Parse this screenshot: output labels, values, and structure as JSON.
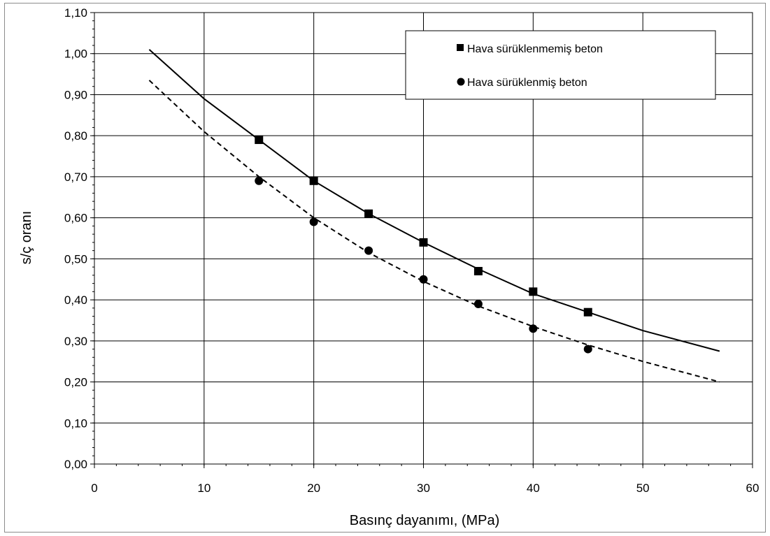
{
  "chart_data": {
    "type": "scatter",
    "title": "",
    "xlabel": "Basınç dayanımı, (MPa)",
    "ylabel": "s/ç oranı",
    "xlim": [
      0,
      60
    ],
    "ylim": [
      0,
      1.1
    ],
    "x_ticks": [
      "0",
      "10",
      "20",
      "30",
      "40",
      "50",
      "60"
    ],
    "y_ticks": [
      "0,00",
      "0,10",
      "0,20",
      "0,30",
      "0,40",
      "0,50",
      "0,60",
      "0,70",
      "0,80",
      "0,90",
      "1,00",
      "1,10"
    ],
    "grid": true,
    "legend_position": "top-right",
    "series": [
      {
        "name": "Hava sürüklenmemiş beton",
        "marker": "square",
        "x": [
          15,
          20,
          25,
          30,
          35,
          40,
          45
        ],
        "y": [
          0.79,
          0.69,
          0.61,
          0.54,
          0.47,
          0.42,
          0.37
        ],
        "trend_line": "solid",
        "trend_x": [
          5,
          10,
          15,
          20,
          25,
          30,
          35,
          40,
          45,
          50,
          57
        ],
        "trend_y": [
          1.01,
          0.89,
          0.79,
          0.69,
          0.61,
          0.54,
          0.475,
          0.415,
          0.37,
          0.325,
          0.275
        ],
        "color": "#000000"
      },
      {
        "name": "Hava sürüklenmiş beton",
        "marker": "circle",
        "x": [
          15,
          20,
          25,
          30,
          35,
          40,
          45
        ],
        "y": [
          0.69,
          0.59,
          0.52,
          0.45,
          0.39,
          0.33,
          0.28
        ],
        "trend_line": "dashed",
        "trend_x": [
          5,
          10,
          15,
          20,
          25,
          30,
          35,
          40,
          45,
          50,
          57
        ],
        "trend_y": [
          0.935,
          0.81,
          0.7,
          0.6,
          0.515,
          0.445,
          0.385,
          0.335,
          0.29,
          0.25,
          0.2
        ],
        "color": "#000000"
      }
    ]
  }
}
